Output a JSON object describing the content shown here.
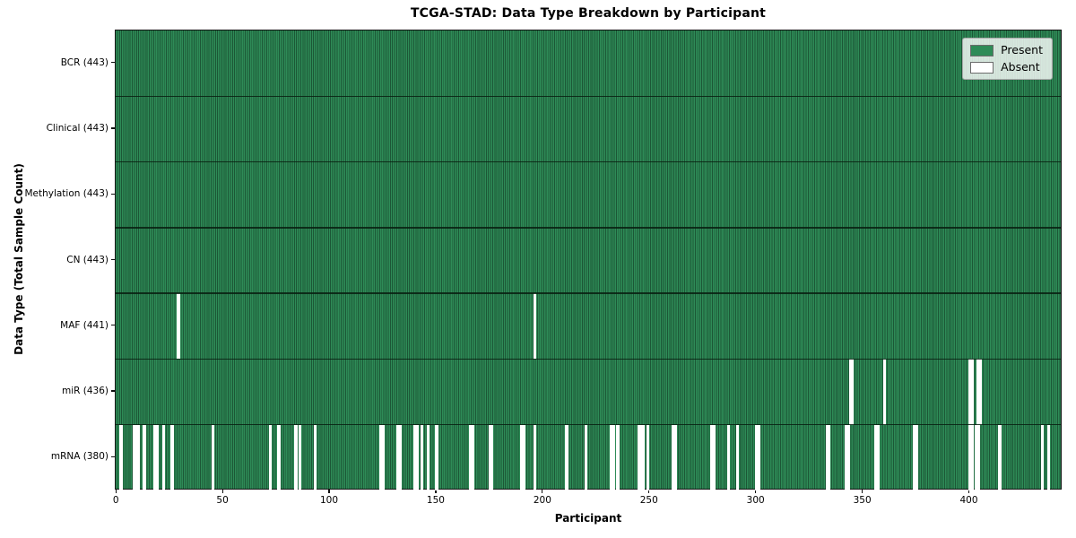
{
  "title": "TCGA-STAD: Data Type Breakdown by Participant",
  "x_axis": {
    "label": "Participant",
    "ticks": [
      0,
      50,
      100,
      150,
      200,
      250,
      300,
      350,
      400
    ]
  },
  "y_axis": {
    "label": "Data Type (Total Sample Count)"
  },
  "legend": {
    "items": [
      {
        "label": "Present",
        "color": "#2e8b57"
      },
      {
        "label": "Absent",
        "color": "#ffffff"
      }
    ]
  },
  "colors": {
    "present": "#2e8b57",
    "absent": "#ffffff",
    "bar_edge": "#1c5736",
    "plot_border": "#141414",
    "row_separator": "#081e11",
    "legend_background": "rgba(255,255,255,0.8)"
  },
  "chart_data": {
    "type": "heatmap",
    "title": "TCGA-STAD: Data Type Breakdown by Participant",
    "xlabel": "Participant",
    "ylabel": "Data Type (Total Sample Count)",
    "x_domain": [
      0,
      443
    ],
    "x_ticks": [
      0,
      50,
      100,
      150,
      200,
      250,
      300,
      350,
      400
    ],
    "n_participants": 443,
    "legend": [
      "Present",
      "Absent"
    ],
    "legend_position": "upper right",
    "rows": [
      {
        "label": "BCR (443)",
        "data_type": "BCR",
        "present_count": 443,
        "absent_participants": []
      },
      {
        "label": "Clinical (443)",
        "data_type": "Clinical",
        "present_count": 443,
        "absent_participants": []
      },
      {
        "label": "Methylation (443)",
        "data_type": "Methylation",
        "present_count": 443,
        "absent_participants": []
      },
      {
        "label": "CN (443)",
        "data_type": "CN",
        "present_count": 443,
        "absent_participants": []
      },
      {
        "label": "MAF (441)",
        "data_type": "MAF",
        "present_count": 441,
        "absent_participants": [
          29,
          196
        ]
      },
      {
        "label": "miR (436)",
        "data_type": "miR",
        "present_count": 436,
        "absent_participants": [
          344,
          345,
          360,
          400,
          401,
          404,
          405
        ]
      },
      {
        "label": "mRNA (380)",
        "data_type": "mRNA",
        "present_count": 380,
        "absent_participants": [
          2,
          8,
          9,
          10,
          13,
          18,
          19,
          22,
          26,
          45,
          72,
          76,
          84,
          86,
          93,
          124,
          125,
          132,
          133,
          140,
          141,
          143,
          146,
          150,
          166,
          167,
          175,
          176,
          190,
          191,
          196,
          211,
          220,
          232,
          233,
          235,
          245,
          246,
          247,
          249,
          261,
          262,
          279,
          280,
          287,
          291,
          300,
          301,
          333,
          334,
          342,
          343,
          356,
          357,
          374,
          375,
          400,
          401,
          403,
          404,
          414,
          434,
          437
        ]
      }
    ]
  }
}
